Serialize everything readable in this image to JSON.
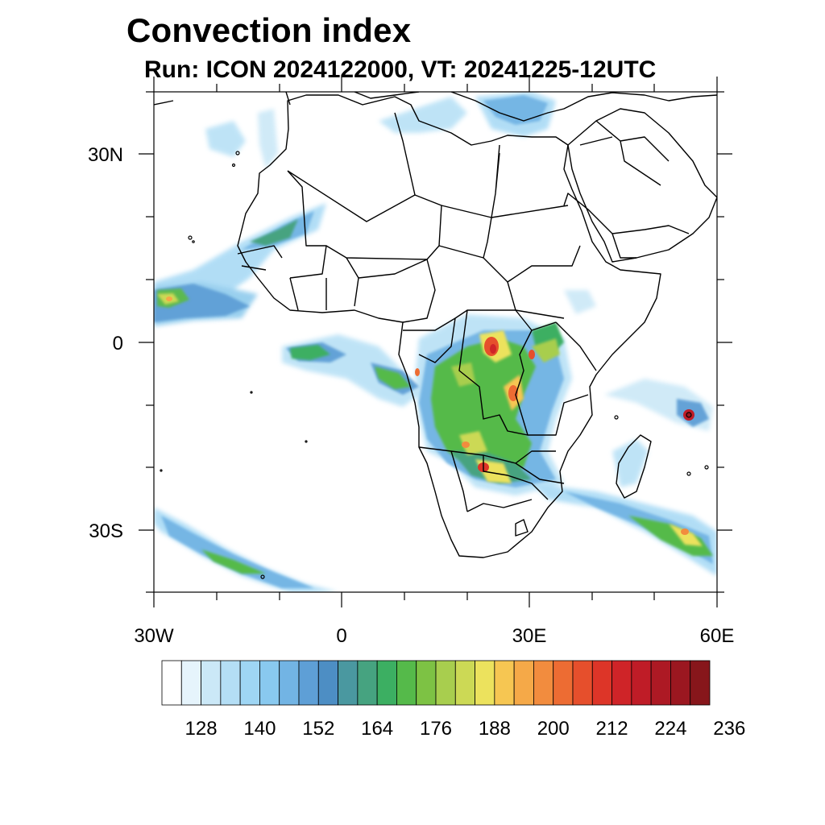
{
  "title": "Convection index",
  "subtitle": "Run: ICON 2024122000,  VT: 20241225-12UTC",
  "axes": {
    "lat_labels": [
      "30N",
      "0",
      "30S"
    ],
    "lon_labels": [
      "30W",
      "0",
      "30E",
      "60E"
    ]
  },
  "colorbar": {
    "labels": [
      "128",
      "140",
      "152",
      "164",
      "176",
      "188",
      "200",
      "212",
      "224",
      "236"
    ],
    "colors": [
      "#ffffff",
      "#e6f4fc",
      "#cbe8f7",
      "#b4def5",
      "#9fd6f4",
      "#89c9ef",
      "#72b4e4",
      "#5e9fd6",
      "#4d8ec4",
      "#4a98a0",
      "#46a380",
      "#3caf62",
      "#55ba4a",
      "#7dc244",
      "#a8ce4e",
      "#ccd955",
      "#ece25d",
      "#f6c652",
      "#f5a948",
      "#f28c3e",
      "#ed6c33",
      "#e64f2c",
      "#dd3528",
      "#cf2428",
      "#bf1c27",
      "#ad1924",
      "#9b1720",
      "#87161b"
    ]
  },
  "colors": {
    "land_outline": "#000000",
    "high_convection": "#e6393b",
    "mid_convection": "#5bb94f",
    "low_convection": "#8fcbed"
  }
}
